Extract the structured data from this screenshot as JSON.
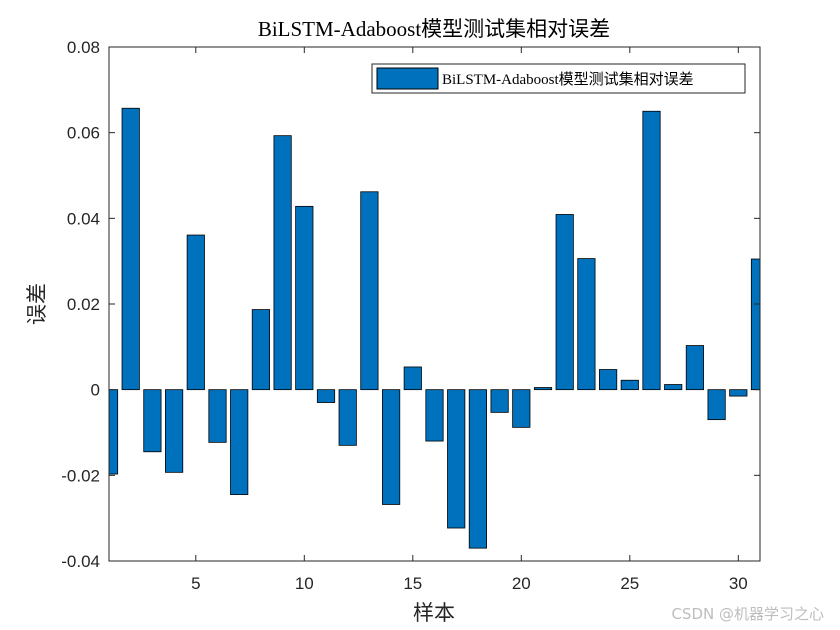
{
  "chart_data": {
    "type": "bar",
    "title": "BiLSTM-Adaboost模型测试集相对误差",
    "xlabel": "样本",
    "ylabel": "误差",
    "xlim": [
      1,
      31
    ],
    "ylim": [
      -0.04,
      0.08
    ],
    "x_ticks": [
      5,
      10,
      15,
      20,
      25,
      30
    ],
    "y_ticks": [
      -0.04,
      -0.02,
      0,
      0.02,
      0.04,
      0.06,
      0.08
    ],
    "y_tick_labels": [
      "-0.04",
      "-0.02",
      "0",
      "0.02",
      "0.04",
      "0.06",
      "0.08"
    ],
    "legend": {
      "placement": "top-right",
      "entries": [
        "BiLSTM-Adaboost模型测试集相对误差"
      ]
    },
    "grid": false,
    "bar_color": "#0072BD",
    "series": [
      {
        "name": "BiLSTM-Adaboost模型测试集相对误差",
        "x": [
          1,
          2,
          3,
          4,
          5,
          6,
          7,
          8,
          9,
          10,
          11,
          12,
          13,
          14,
          15,
          16,
          17,
          18,
          19,
          20,
          21,
          22,
          23,
          24,
          25,
          26,
          27,
          28,
          29,
          30,
          31
        ],
        "values": [
          -0.0197,
          0.0657,
          -0.0145,
          -0.0193,
          0.0361,
          -0.0123,
          -0.0245,
          0.0187,
          0.0593,
          0.0428,
          -0.003,
          -0.013,
          0.0462,
          -0.0268,
          0.0053,
          -0.012,
          -0.0323,
          -0.037,
          -0.0053,
          -0.0088,
          0.0005,
          0.0409,
          0.0306,
          0.0047,
          0.0022,
          0.065,
          0.0012,
          0.0103,
          -0.007,
          -0.0015,
          0.0305
        ]
      }
    ]
  },
  "watermark": "CSDN @机器学习之心"
}
